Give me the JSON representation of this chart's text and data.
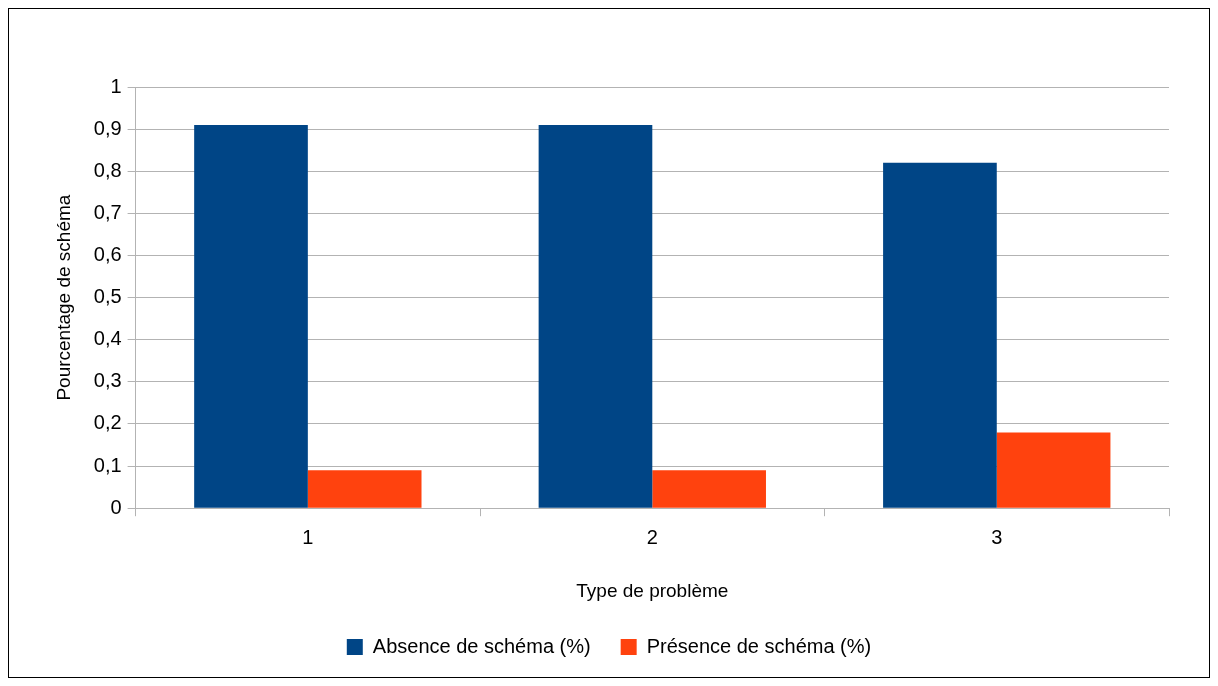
{
  "chart_data": {
    "type": "bar",
    "xlabel": "Type de problème",
    "ylabel": "Pourcentage de schéma",
    "categories": [
      "1",
      "2",
      "3"
    ],
    "series": [
      {
        "name": "Absence de schéma (%)",
        "color": "#004586",
        "values": [
          0.91,
          0.91,
          0.82
        ]
      },
      {
        "name": "Présence de schéma (%)",
        "color": "#ff420e",
        "values": [
          0.09,
          0.09,
          0.18
        ]
      }
    ],
    "ylim": [
      0,
      1
    ],
    "yticks": [
      0,
      {
        "value": 0.1,
        "label": "0,1"
      },
      {
        "value": 0.2,
        "label": "0,2"
      },
      {
        "value": 0.3,
        "label": "0,3"
      },
      {
        "value": 0.4,
        "label": "0,4"
      },
      {
        "value": 0.5,
        "label": "0,5"
      },
      {
        "value": 0.6,
        "label": "0,6"
      },
      {
        "value": 0.7,
        "label": "0,7"
      },
      {
        "value": 0.8,
        "label": "0,8"
      },
      {
        "value": 0.9,
        "label": "0,9"
      },
      1
    ],
    "grid": "y",
    "legend": "bottom"
  }
}
